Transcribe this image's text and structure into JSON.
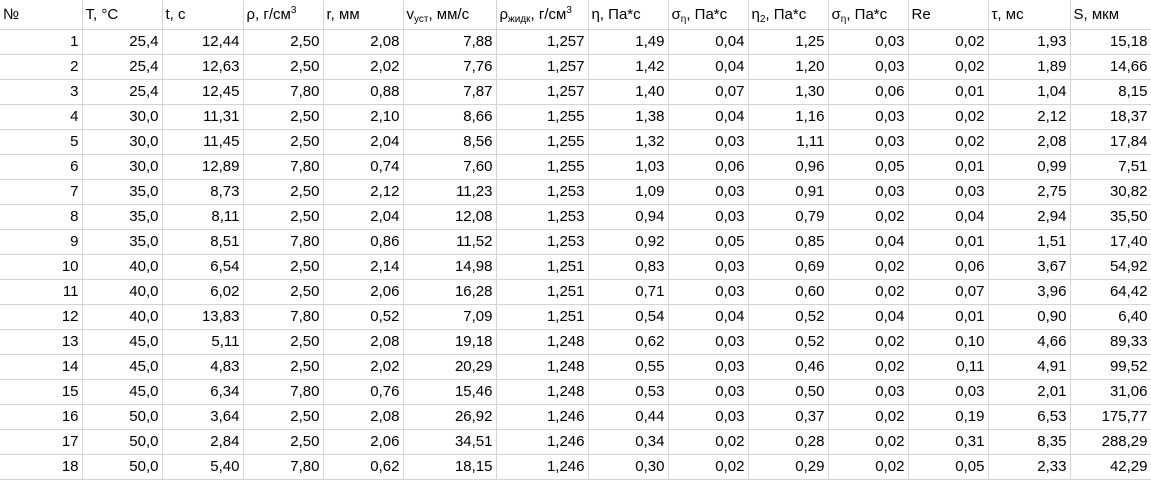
{
  "headers": [
    {
      "base": "№",
      "sub": "",
      "sup": "",
      "rest": ""
    },
    {
      "base": "T, °C",
      "sub": "",
      "sup": "",
      "rest": ""
    },
    {
      "base": "t, c",
      "sub": "",
      "sup": "",
      "rest": ""
    },
    {
      "base": "ρ, г/см",
      "sub": "",
      "sup": "3",
      "rest": ""
    },
    {
      "base": "r, мм",
      "sub": "",
      "sup": "",
      "rest": ""
    },
    {
      "base": "v",
      "sub": "уст",
      "sup": "",
      "rest": ", мм/с"
    },
    {
      "base": "ρ",
      "sub": "жидк",
      "sup": "",
      "rest": ", г/см"
    },
    {
      "base": "η, Па*с",
      "sub": "",
      "sup": "",
      "rest": ""
    },
    {
      "base": "σ",
      "sub": "η",
      "sup": "",
      "rest": ", Па*с"
    },
    {
      "base": "η",
      "sub": "2",
      "sup": "",
      "rest": ", Па*с"
    },
    {
      "base": "σ",
      "sub": "η",
      "sup": "",
      "rest": ", Па*с"
    },
    {
      "base": "Re",
      "sub": "",
      "sup": "",
      "rest": ""
    },
    {
      "base": "τ, мс",
      "sub": "",
      "sup": "",
      "rest": ""
    },
    {
      "base": "S, мкм",
      "sub": "",
      "sup": "",
      "rest": ""
    }
  ],
  "header_extra_sup": {
    "col": 6,
    "text": "3"
  },
  "rows": [
    [
      "1",
      "25,4",
      "12,44",
      "2,50",
      "2,08",
      "7,88",
      "1,257",
      "1,49",
      "0,04",
      "1,25",
      "0,03",
      "0,02",
      "1,93",
      "15,18"
    ],
    [
      "2",
      "25,4",
      "12,63",
      "2,50",
      "2,02",
      "7,76",
      "1,257",
      "1,42",
      "0,04",
      "1,20",
      "0,03",
      "0,02",
      "1,89",
      "14,66"
    ],
    [
      "3",
      "25,4",
      "12,45",
      "7,80",
      "0,88",
      "7,87",
      "1,257",
      "1,40",
      "0,07",
      "1,30",
      "0,06",
      "0,01",
      "1,04",
      "8,15"
    ],
    [
      "4",
      "30,0",
      "11,31",
      "2,50",
      "2,10",
      "8,66",
      "1,255",
      "1,38",
      "0,04",
      "1,16",
      "0,03",
      "0,02",
      "2,12",
      "18,37"
    ],
    [
      "5",
      "30,0",
      "11,45",
      "2,50",
      "2,04",
      "8,56",
      "1,255",
      "1,32",
      "0,03",
      "1,11",
      "0,03",
      "0,02",
      "2,08",
      "17,84"
    ],
    [
      "6",
      "30,0",
      "12,89",
      "7,80",
      "0,74",
      "7,60",
      "1,255",
      "1,03",
      "0,06",
      "0,96",
      "0,05",
      "0,01",
      "0,99",
      "7,51"
    ],
    [
      "7",
      "35,0",
      "8,73",
      "2,50",
      "2,12",
      "11,23",
      "1,253",
      "1,09",
      "0,03",
      "0,91",
      "0,03",
      "0,03",
      "2,75",
      "30,82"
    ],
    [
      "8",
      "35,0",
      "8,11",
      "2,50",
      "2,04",
      "12,08",
      "1,253",
      "0,94",
      "0,03",
      "0,79",
      "0,02",
      "0,04",
      "2,94",
      "35,50"
    ],
    [
      "9",
      "35,0",
      "8,51",
      "7,80",
      "0,86",
      "11,52",
      "1,253",
      "0,92",
      "0,05",
      "0,85",
      "0,04",
      "0,01",
      "1,51",
      "17,40"
    ],
    [
      "10",
      "40,0",
      "6,54",
      "2,50",
      "2,14",
      "14,98",
      "1,251",
      "0,83",
      "0,03",
      "0,69",
      "0,02",
      "0,06",
      "3,67",
      "54,92"
    ],
    [
      "11",
      "40,0",
      "6,02",
      "2,50",
      "2,06",
      "16,28",
      "1,251",
      "0,71",
      "0,03",
      "0,60",
      "0,02",
      "0,07",
      "3,96",
      "64,42"
    ],
    [
      "12",
      "40,0",
      "13,83",
      "7,80",
      "0,52",
      "7,09",
      "1,251",
      "0,54",
      "0,04",
      "0,52",
      "0,04",
      "0,01",
      "0,90",
      "6,40"
    ],
    [
      "13",
      "45,0",
      "5,11",
      "2,50",
      "2,08",
      "19,18",
      "1,248",
      "0,62",
      "0,03",
      "0,52",
      "0,02",
      "0,10",
      "4,66",
      "89,33"
    ],
    [
      "14",
      "45,0",
      "4,83",
      "2,50",
      "2,02",
      "20,29",
      "1,248",
      "0,55",
      "0,03",
      "0,46",
      "0,02",
      "0,11",
      "4,91",
      "99,52"
    ],
    [
      "15",
      "45,0",
      "6,34",
      "7,80",
      "0,76",
      "15,46",
      "1,248",
      "0,53",
      "0,03",
      "0,50",
      "0,03",
      "0,03",
      "2,01",
      "31,06"
    ],
    [
      "16",
      "50,0",
      "3,64",
      "2,50",
      "2,08",
      "26,92",
      "1,246",
      "0,44",
      "0,03",
      "0,37",
      "0,02",
      "0,19",
      "6,53",
      "175,77"
    ],
    [
      "17",
      "50,0",
      "2,84",
      "2,50",
      "2,06",
      "34,51",
      "1,246",
      "0,34",
      "0,02",
      "0,28",
      "0,02",
      "0,31",
      "8,35",
      "288,29"
    ],
    [
      "18",
      "50,0",
      "5,40",
      "7,80",
      "0,62",
      "18,15",
      "1,246",
      "0,30",
      "0,02",
      "0,29",
      "0,02",
      "0,05",
      "2,33",
      "42,29"
    ]
  ]
}
